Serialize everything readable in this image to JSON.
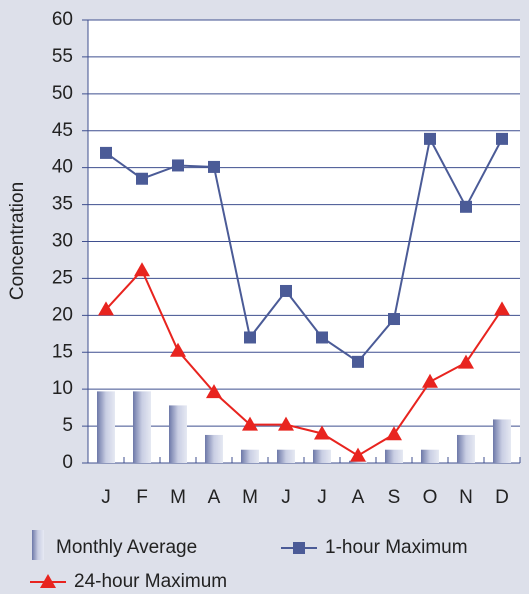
{
  "chart_data": {
    "type": "combo",
    "y_label": "Concentration",
    "categories": [
      "J",
      "F",
      "M",
      "A",
      "M",
      "J",
      "J",
      "A",
      "S",
      "O",
      "N",
      "D"
    ],
    "series": [
      {
        "name": "Monthly Average",
        "type": "bar",
        "color": "#9aa3c6",
        "values": [
          9.7,
          9.7,
          7.8,
          3.8,
          1.8,
          1.8,
          1.8,
          0.3,
          1.8,
          1.8,
          3.8,
          5.9
        ]
      },
      {
        "name": "1-hour Maximum",
        "type": "line",
        "marker": "square",
        "color": "#4b5b97",
        "values": [
          42,
          38.5,
          40.3,
          40.1,
          17,
          23.3,
          17,
          13.7,
          19.5,
          43.9,
          34.7,
          43.9
        ]
      },
      {
        "name": "24-hour Maximum",
        "type": "line",
        "marker": "triangle",
        "color": "#e8241f",
        "values": [
          20.8,
          26.1,
          15.2,
          9.6,
          5.2,
          5.2,
          4,
          1,
          3.9,
          11,
          13.6,
          20.8
        ]
      }
    ],
    "ylim": [
      0,
      60
    ],
    "yticks": [
      0,
      5,
      10,
      15,
      20,
      25,
      30,
      35,
      40,
      45,
      50,
      55,
      60
    ],
    "grid": true
  }
}
